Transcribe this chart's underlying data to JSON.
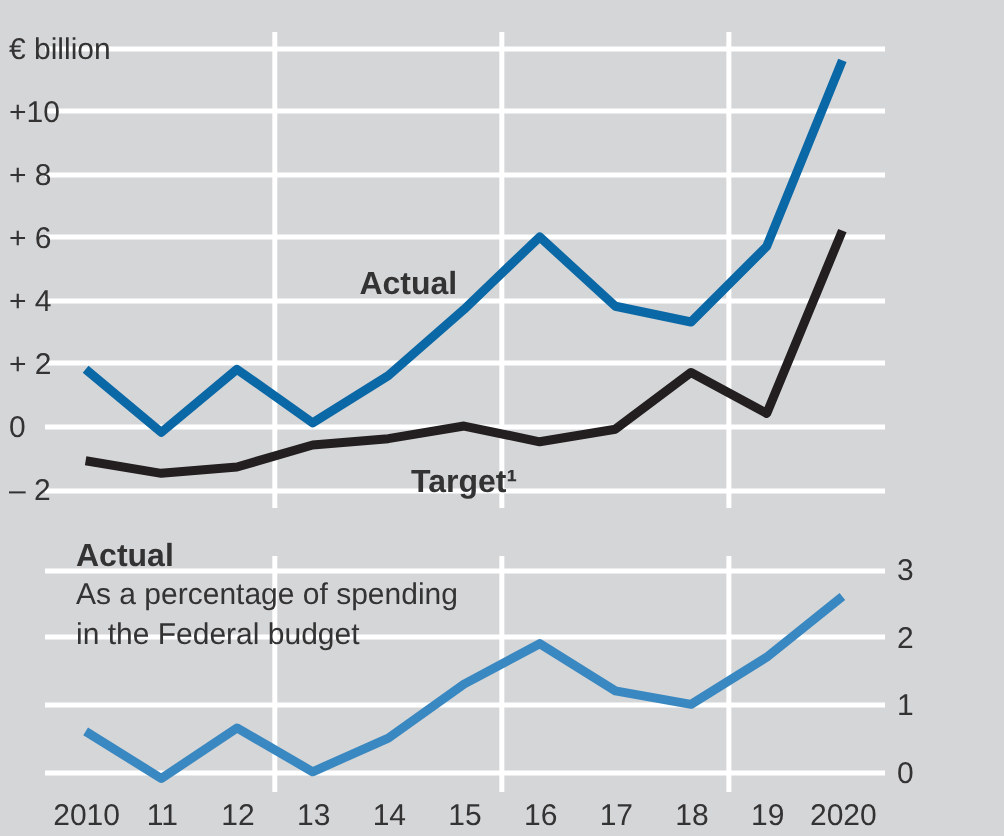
{
  "chart_data": [
    {
      "type": "line",
      "x": [
        2010,
        2011,
        2012,
        2013,
        2014,
        2015,
        2016,
        2017,
        2018,
        2019,
        2020
      ],
      "xlim": [
        2009.45,
        2020.55
      ],
      "ylim": [
        -2.6,
        12.5
      ],
      "yticks": [
        {
          "value": -2,
          "label": "– 2"
        },
        0,
        {
          "value": 2,
          "label": "+ 2"
        },
        {
          "value": 4,
          "label": "+ 4"
        },
        {
          "value": 6,
          "label": "+ 6"
        },
        {
          "value": 8,
          "label": "+ 8"
        },
        {
          "value": 10,
          "label": "+10"
        },
        {
          "value": 12,
          "label": "€ billion"
        }
      ],
      "series": [
        {
          "name": "Actual",
          "color": "#0a68a6",
          "values": [
            1.8,
            -0.2,
            1.8,
            0.1,
            1.6,
            3.7,
            6.0,
            3.8,
            3.3,
            5.7,
            11.6
          ]
        },
        {
          "name": "Target¹",
          "color": "#231f20",
          "values": [
            -1.1,
            -1.5,
            -1.3,
            -0.6,
            -0.4,
            0.0,
            -0.5,
            -0.1,
            1.7,
            0.4,
            6.2
          ]
        }
      ],
      "ref_lines": [
        {
          "axis": "x",
          "value": 2012.5,
          "color": "#ffffff"
        },
        {
          "axis": "x",
          "value": 2015.5,
          "color": "#ffffff"
        },
        {
          "axis": "x",
          "value": 2018.5,
          "color": "#ffffff"
        }
      ],
      "grid": "y",
      "tick_labels": "y",
      "legend": false,
      "line_style": "solid"
    },
    {
      "type": "line",
      "x": [
        2010,
        2011,
        2012,
        2013,
        2014,
        2015,
        2016,
        2017,
        2018,
        2019,
        2020
      ],
      "xlim": [
        2009.45,
        2020.55
      ],
      "xticks": [
        2010,
        {
          "value": 2011,
          "label": "11"
        },
        {
          "value": 2012,
          "label": "12"
        },
        {
          "value": 2013,
          "label": "13"
        },
        {
          "value": 2014,
          "label": "14"
        },
        {
          "value": 2015,
          "label": "15"
        },
        {
          "value": 2016,
          "label": "16"
        },
        {
          "value": 2017,
          "label": "17"
        },
        {
          "value": 2018,
          "label": "18"
        },
        {
          "value": 2019,
          "label": "19"
        },
        2020
      ],
      "y2lim": [
        -0.3,
        3.2
      ],
      "y2ticks": [
        0,
        1,
        2,
        3
      ],
      "series": [
        {
          "name": "Actual",
          "color": "#3a88c1",
          "axis": "y2",
          "values": [
            0.6,
            -0.1,
            0.65,
            0.0,
            0.5,
            1.3,
            1.9,
            1.2,
            1.0,
            1.7,
            2.6
          ]
        }
      ],
      "annotations": [
        "As a percentage of spending in the Federal budget"
      ],
      "ref_lines": [
        {
          "axis": "x",
          "value": 2012.5,
          "color": "#ffffff"
        },
        {
          "axis": "x",
          "value": 2015.5,
          "color": "#ffffff"
        },
        {
          "axis": "x",
          "value": 2018.5,
          "color": "#ffffff"
        }
      ],
      "grid": "y",
      "legend": false,
      "line_style": "solid"
    }
  ]
}
